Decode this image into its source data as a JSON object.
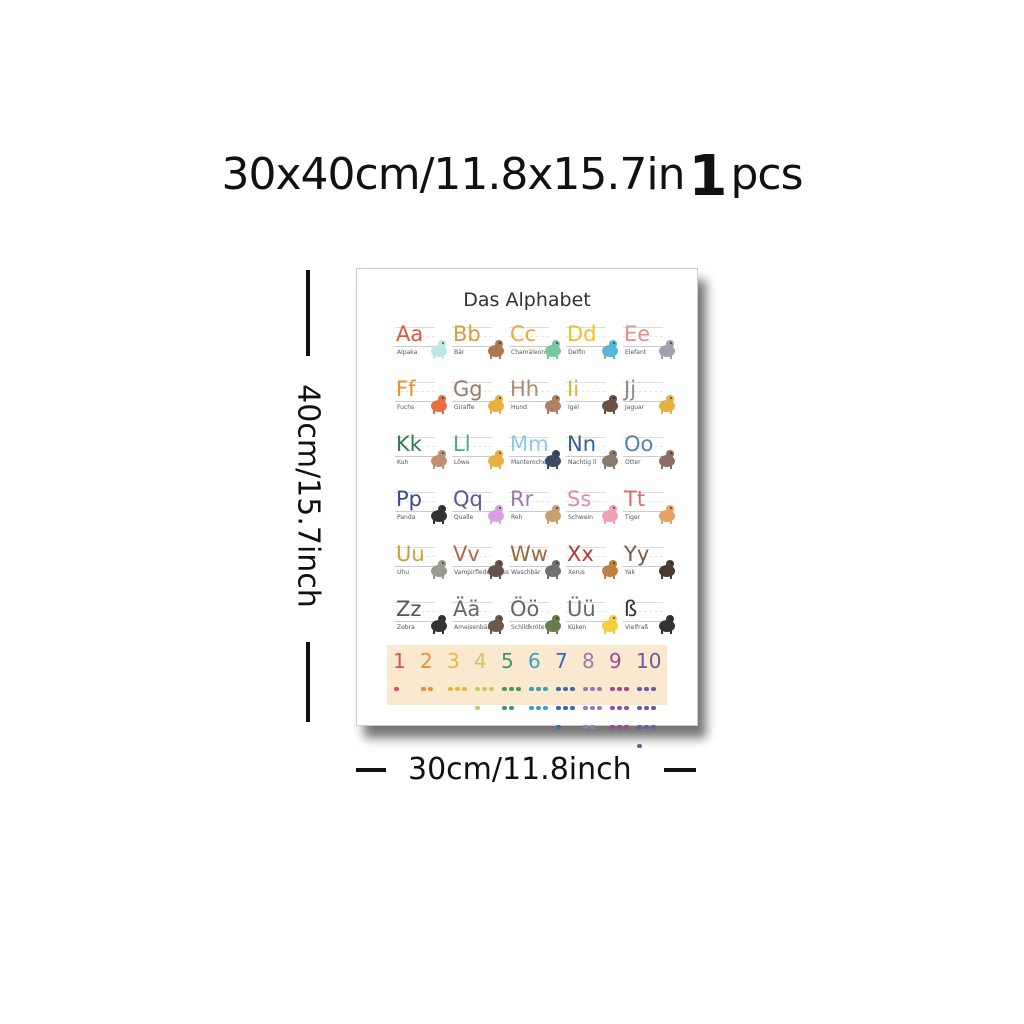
{
  "headline": {
    "size_text": "30x40cm/11.8x15.7in",
    "count": "1",
    "unit": "pcs"
  },
  "dimensions": {
    "height_label": "40cm/15.7inch",
    "width_label": "30cm/11.8inch"
  },
  "poster": {
    "title": "Das Alphabet",
    "letters": [
      {
        "letter": "Aa",
        "word": "Alpaka",
        "color": "#e0573a"
      },
      {
        "letter": "Bb",
        "word": "Bär",
        "color": "#d99a3a"
      },
      {
        "letter": "Cc",
        "word": "Chamäleon",
        "color": "#e6a93a"
      },
      {
        "letter": "Dd",
        "word": "Delfin",
        "color": "#f0c020"
      },
      {
        "letter": "Ee",
        "word": "Elefant",
        "color": "#e98a8a"
      },
      {
        "letter": "Ff",
        "word": "Fuchs",
        "color": "#e8902c"
      },
      {
        "letter": "Gg",
        "word": "Giraffe",
        "color": "#9a7a66"
      },
      {
        "letter": "Hh",
        "word": "Hund",
        "color": "#b0896e"
      },
      {
        "letter": "Ii",
        "word": "Igel",
        "color": "#d9b43a"
      },
      {
        "letter": "Jj",
        "word": "Jaguar",
        "color": "#8a8a8a"
      },
      {
        "letter": "Kk",
        "word": "Kuh",
        "color": "#2e7d4f"
      },
      {
        "letter": "Ll",
        "word": "Löwe",
        "color": "#4caf7a"
      },
      {
        "letter": "Mm",
        "word": "Manterochen",
        "color": "#8ecae6"
      },
      {
        "letter": "Nn",
        "word": "Nachtig ll",
        "color": "#2f5f8a"
      },
      {
        "letter": "Oo",
        "word": "Otter",
        "color": "#5a7fb0"
      },
      {
        "letter": "Pp",
        "word": "Panda",
        "color": "#3a4a8a"
      },
      {
        "letter": "Qq",
        "word": "Qualle",
        "color": "#5a5a9a"
      },
      {
        "letter": "Rr",
        "word": "Reh",
        "color": "#9a7ab0"
      },
      {
        "letter": "Ss",
        "word": "Schwein",
        "color": "#e08ab0"
      },
      {
        "letter": "Tt",
        "word": "Tiger",
        "color": "#e06a6a"
      },
      {
        "letter": "Uu",
        "word": "Uhu",
        "color": "#c8a040"
      },
      {
        "letter": "Vv",
        "word": "Vampirfledermaus",
        "color": "#b06a4a"
      },
      {
        "letter": "Ww",
        "word": "Waschbär",
        "color": "#9a6a3a"
      },
      {
        "letter": "Xx",
        "word": "Xerus",
        "color": "#b03a3a"
      },
      {
        "letter": "Yy",
        "word": "Yak",
        "color": "#7a5a40"
      },
      {
        "letter": "Zz",
        "word": "Zebra",
        "color": "#555555"
      },
      {
        "letter": "Ää",
        "word": "Ameisenbär",
        "color": "#666666"
      },
      {
        "letter": "Öö",
        "word": "Schildkröte",
        "color": "#666666"
      },
      {
        "letter": "Üü",
        "word": "Küken",
        "color": "#666666"
      },
      {
        "letter": "ß",
        "word": "Vielfraß",
        "color": "#333333"
      }
    ],
    "numbers": [
      {
        "n": "1",
        "color": "#e05050",
        "count": 1
      },
      {
        "n": "2",
        "color": "#e8902c",
        "count": 2
      },
      {
        "n": "3",
        "color": "#e6b93a",
        "count": 3
      },
      {
        "n": "4",
        "color": "#c6c96a",
        "count": 4
      },
      {
        "n": "5",
        "color": "#3a9a6a",
        "count": 5
      },
      {
        "n": "6",
        "color": "#3aa0c0",
        "count": 6
      },
      {
        "n": "7",
        "color": "#3a6ab0",
        "count": 7
      },
      {
        "n": "8",
        "color": "#9a7ab0",
        "count": 8
      },
      {
        "n": "9",
        "color": "#9a4a9a",
        "count": 9
      },
      {
        "n": "10",
        "color": "#6a5aa0",
        "count": 10
      }
    ]
  },
  "animal_colors": [
    "#bfe6e6",
    "#a87a4e",
    "#7ac6a0",
    "#5ab6d6",
    "#a0a0b0",
    "#e87040",
    "#e8b040",
    "#b08060",
    "#6a5040",
    "#e8b040",
    "#c09070",
    "#e8b040",
    "#3a4a60",
    "#8a7a6a",
    "#8a7060",
    "#333333",
    "#d8a0e0",
    "#c8a070",
    "#f0a0b0",
    "#e8a060",
    "#9a9a90",
    "#6a5050",
    "#707070",
    "#c08040",
    "#4a3a30",
    "#333333",
    "#6a5a4a",
    "#6a7a4a",
    "#f0d040",
    "#333333"
  ]
}
